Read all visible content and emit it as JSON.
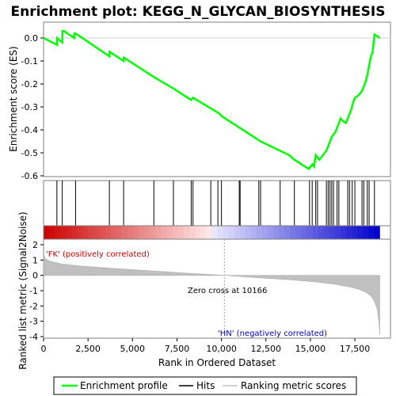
{
  "chart_data": {
    "type": "line",
    "title": "Enrichment plot: KEGG_N_GLYCAN_BIOSYNTHESIS",
    "top_panel": {
      "ylabel": "Enrichment score (ES)",
      "ylim": [
        -0.6,
        0.05
      ],
      "yticks": [
        "0.0",
        "-0.1",
        "-0.2",
        "-0.3",
        "-0.4",
        "-0.5",
        "-0.6"
      ],
      "ytick_values": [
        0.0,
        -0.1,
        -0.2,
        -0.3,
        -0.4,
        -0.5,
        -0.6
      ],
      "series": [
        {
          "name": "Enrichment profile",
          "color": "#00ff00",
          "x": [
            0,
            750,
            760,
            1050,
            1060,
            1150,
            1720,
            1730,
            1800,
            3700,
            3710,
            4500,
            4510,
            6200,
            7300,
            8300,
            8400,
            9900,
            10000,
            12000,
            12200,
            13800,
            14100,
            14900,
            15100,
            15200,
            15300,
            15400,
            15500,
            15600,
            15800,
            15900,
            16000,
            16100,
            16200,
            16300,
            16400,
            16500,
            16600,
            16700,
            16800,
            17000,
            17200,
            17300,
            17400,
            17500,
            17700,
            17900,
            18000,
            18100,
            18200,
            18300,
            18400,
            18500,
            18600,
            18700,
            18900
          ],
          "y": [
            0.0,
            -0.03,
            0.0,
            -0.02,
            0.03,
            0.03,
            0.0,
            0.02,
            0.02,
            -0.08,
            -0.06,
            -0.1,
            -0.085,
            -0.17,
            -0.22,
            -0.27,
            -0.26,
            -0.33,
            -0.34,
            -0.44,
            -0.45,
            -0.51,
            -0.53,
            -0.57,
            -0.55,
            -0.56,
            -0.51,
            -0.52,
            -0.53,
            -0.52,
            -0.5,
            -0.49,
            -0.47,
            -0.45,
            -0.43,
            -0.42,
            -0.41,
            -0.39,
            -0.37,
            -0.35,
            -0.36,
            -0.37,
            -0.33,
            -0.31,
            -0.28,
            -0.26,
            -0.25,
            -0.23,
            -0.21,
            -0.19,
            -0.16,
            -0.12,
            -0.08,
            -0.06,
            0.015,
            0.01,
            0.0
          ]
        }
      ]
    },
    "hits_panel": {
      "name": "Hits",
      "hit_positions": [
        750,
        1050,
        1800,
        3700,
        4500,
        6200,
        7300,
        8300,
        8400,
        9400,
        9800,
        10000,
        11000,
        11050,
        12100,
        12200,
        13300,
        14100,
        14950,
        15100,
        15300,
        15400,
        15900,
        16000,
        16100,
        16200,
        16300,
        16500,
        16600,
        17100,
        17200,
        17350,
        17500,
        17900,
        18000,
        18200,
        18300,
        18600
      ]
    },
    "bottom_panel": {
      "ylabel": "Ranked list metric (Signal2Noise)",
      "xlabel": "Rank in Ordered Dataset",
      "xlim": [
        0,
        19500
      ],
      "ylim": [
        -4,
        2.5
      ],
      "xticks": [
        "0",
        "2,500",
        "5,000",
        "7,500",
        "10,000",
        "12,500",
        "15,000",
        "17,500"
      ],
      "xtick_values": [
        0,
        2500,
        5000,
        7500,
        10000,
        12500,
        15000,
        17500
      ],
      "yticks": [
        "2",
        "1",
        "0",
        "-1",
        "-2",
        "-3",
        "-4"
      ],
      "ytick_values": [
        2,
        1,
        0,
        -1,
        -2,
        -3,
        -4
      ],
      "name": "Ranking metric scores",
      "fill_color": "#c0c0c0",
      "metric_profile": {
        "x": [
          0,
          100,
          300,
          600,
          1000,
          2000,
          4000,
          6000,
          8000,
          10166,
          12000,
          14000,
          15500,
          16500,
          17200,
          17700,
          18100,
          18400,
          18600,
          18750,
          18850,
          18900
        ],
        "y": [
          1.4,
          1.1,
          0.95,
          0.85,
          0.75,
          0.62,
          0.45,
          0.3,
          0.15,
          0.0,
          -0.15,
          -0.3,
          -0.45,
          -0.6,
          -0.75,
          -0.9,
          -1.1,
          -1.35,
          -1.7,
          -2.2,
          -3.0,
          -3.85
        ]
      },
      "zero_cross_label": "Zero cross at 10166",
      "zero_cross": 10166,
      "pos_label": "'FK' (positively correlated)",
      "neg_label": "'HN' (negatively correlated)",
      "pos_color": "#cc0000",
      "neg_color": "#0000cc"
    },
    "legend": {
      "placement": "bottom",
      "items": [
        {
          "label": "Enrichment profile",
          "color": "#00ff00"
        },
        {
          "label": "Hits",
          "color": "#000000"
        },
        {
          "label": "Ranking metric scores",
          "color": "#c0c0c0"
        }
      ]
    }
  }
}
